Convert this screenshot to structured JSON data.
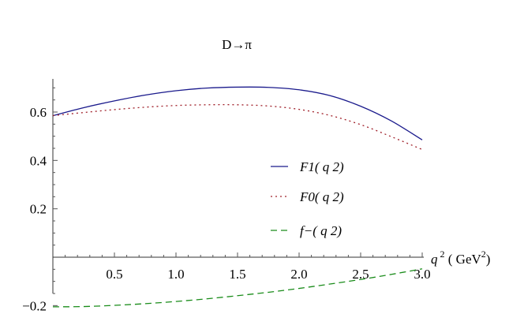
{
  "chart_data": {
    "type": "line",
    "title": "D→π",
    "xlabel": "q 2 ( GeV2)",
    "ylabel": "",
    "xlim": [
      0,
      3.0
    ],
    "ylim": [
      -0.22,
      0.75
    ],
    "x_ticks": [
      0.5,
      1.0,
      1.5,
      2.0,
      2.5,
      3.0
    ],
    "x_tick_labels": [
      "0.5",
      "1.0",
      "1.5",
      "2.0",
      "2.5",
      "3.0"
    ],
    "y_ticks": [
      -0.2,
      0.2,
      0.4,
      0.6
    ],
    "y_tick_labels": [
      "−0.2",
      "0.2",
      "0.4",
      "0.6"
    ],
    "grid": false,
    "legend_position": "center-right",
    "series": [
      {
        "name": "F1( q 2)",
        "color": "#1a1a8c",
        "dash": "solid",
        "x": [
          0,
          0.25,
          0.5,
          0.75,
          1.0,
          1.25,
          1.5,
          1.75,
          2.0,
          2.25,
          2.5,
          2.75,
          3.0
        ],
        "y": [
          0.585,
          0.618,
          0.646,
          0.67,
          0.688,
          0.699,
          0.703,
          0.702,
          0.692,
          0.668,
          0.624,
          0.563,
          0.485
        ]
      },
      {
        "name": "F0( q 2)",
        "color": "#a0202a",
        "dash": "dotted",
        "x": [
          0,
          0.25,
          0.5,
          0.75,
          1.0,
          1.25,
          1.5,
          1.75,
          2.0,
          2.25,
          2.5,
          2.75,
          3.0
        ],
        "y": [
          0.585,
          0.598,
          0.61,
          0.62,
          0.627,
          0.63,
          0.63,
          0.625,
          0.611,
          0.586,
          0.548,
          0.498,
          0.445
        ]
      },
      {
        "name": "f−( q 2)",
        "color": "#1a8c1a",
        "dash": "dashed",
        "x": [
          0,
          0.25,
          0.5,
          0.75,
          1.0,
          1.25,
          1.5,
          1.75,
          2.0,
          2.25,
          2.5,
          2.75,
          3.0
        ],
        "y": [
          -0.205,
          -0.204,
          -0.199,
          -0.192,
          -0.183,
          -0.172,
          -0.159,
          -0.145,
          -0.129,
          -0.111,
          -0.092,
          -0.071,
          -0.048
        ]
      }
    ]
  }
}
